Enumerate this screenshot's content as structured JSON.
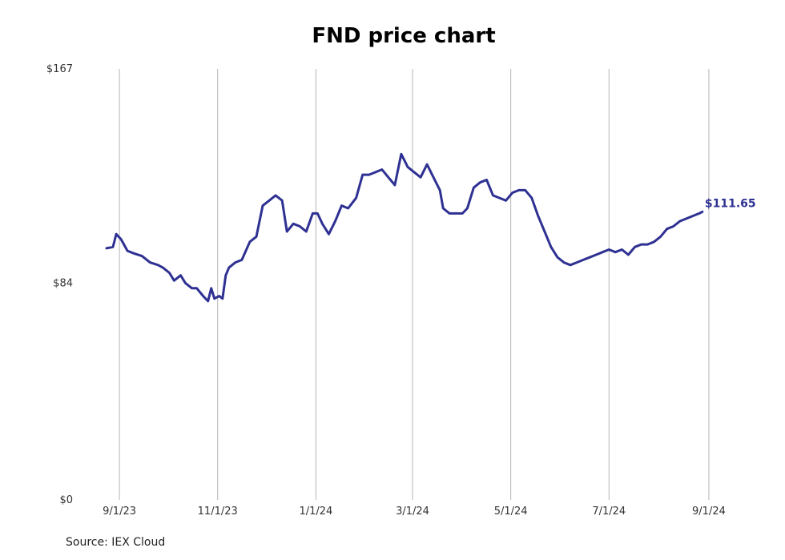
{
  "chart_data": {
    "type": "line",
    "title": "FND price chart",
    "source": "Source: IEX Cloud",
    "y_ticks": [
      "$167",
      "$84",
      "$0"
    ],
    "ylim": [
      0,
      167
    ],
    "y_tick_values": [
      167,
      84,
      0
    ],
    "x_ticks": [
      "9/1/23",
      "11/1/23",
      "1/1/24",
      "3/1/24",
      "5/1/24",
      "7/1/24",
      "9/1/24"
    ],
    "x_tick_dates": [
      "2023-09-01",
      "2023-11-01",
      "2024-01-01",
      "2024-03-01",
      "2024-05-01",
      "2024-07-01",
      "2024-09-01"
    ],
    "xlim": [
      "2023-08-24",
      "2024-09-06"
    ],
    "grid": {
      "vertical": true,
      "horizontal": false
    },
    "line_color": "#2e3192",
    "end_label": "$111.65",
    "series": [
      {
        "dates": [
          "2023-08-24",
          "2023-08-28",
          "2023-08-30",
          "2023-09-02",
          "2023-09-06",
          "2023-09-10",
          "2023-09-15",
          "2023-09-20",
          "2023-09-25",
          "2023-09-28",
          "2023-10-02",
          "2023-10-05",
          "2023-10-09",
          "2023-10-12",
          "2023-10-16",
          "2023-10-19",
          "2023-10-23",
          "2023-10-26",
          "2023-10-28",
          "2023-10-30",
          "2023-11-02",
          "2023-11-04",
          "2023-11-06",
          "2023-11-08",
          "2023-11-12",
          "2023-11-16",
          "2023-11-21",
          "2023-11-25",
          "2023-11-29",
          "2023-12-03",
          "2023-12-07",
          "2023-12-11",
          "2023-12-14",
          "2023-12-18",
          "2023-12-22",
          "2023-12-26",
          "2023-12-30",
          "2024-01-02",
          "2024-01-05",
          "2024-01-09",
          "2024-01-13",
          "2024-01-17",
          "2024-01-21",
          "2024-01-26",
          "2024-01-30",
          "2024-02-03",
          "2024-02-07",
          "2024-02-11",
          "2024-02-15",
          "2024-02-19",
          "2024-02-23",
          "2024-02-27",
          "2024-03-02",
          "2024-03-06",
          "2024-03-10",
          "2024-03-14",
          "2024-03-18",
          "2024-03-20",
          "2024-03-24",
          "2024-03-28",
          "2024-04-01",
          "2024-04-04",
          "2024-04-08",
          "2024-04-12",
          "2024-04-16",
          "2024-04-20",
          "2024-04-24",
          "2024-04-28",
          "2024-05-02",
          "2024-05-06",
          "2024-05-10",
          "2024-05-14",
          "2024-05-18",
          "2024-05-22",
          "2024-05-26",
          "2024-05-30",
          "2024-06-03",
          "2024-06-07",
          "2024-06-11",
          "2024-06-15",
          "2024-06-19",
          "2024-06-23",
          "2024-06-27",
          "2024-07-01",
          "2024-07-05",
          "2024-07-09",
          "2024-07-13",
          "2024-07-17",
          "2024-07-21",
          "2024-07-25",
          "2024-07-29",
          "2024-08-02",
          "2024-08-06",
          "2024-08-10",
          "2024-08-14",
          "2024-08-18",
          "2024-08-22",
          "2024-08-26",
          "2024-08-28"
        ],
        "values": [
          97.5,
          98.0,
          103.0,
          101.0,
          96.5,
          95.5,
          94.5,
          92.0,
          91.0,
          90.0,
          88.0,
          85.0,
          87.0,
          84.0,
          82.0,
          82.0,
          79.0,
          77.0,
          82.0,
          78.0,
          79.0,
          78.0,
          87.0,
          90.0,
          92.0,
          93.0,
          100.0,
          102.0,
          114.0,
          116.0,
          118.0,
          116.0,
          104.0,
          107.0,
          106.0,
          104.0,
          111.0,
          111.0,
          107.0,
          103.0,
          108.0,
          114.0,
          113.0,
          117.0,
          126.0,
          126.0,
          127.0,
          128.0,
          125.0,
          122.0,
          134.0,
          129.0,
          127.0,
          125.0,
          130.0,
          125.0,
          120.0,
          113.0,
          111.0,
          111.0,
          111.0,
          113.0,
          121.0,
          123.0,
          124.0,
          118.0,
          117.0,
          116.0,
          119.0,
          120.0,
          120.0,
          117.0,
          110.0,
          104.0,
          98.0,
          94.0,
          92.0,
          91.0,
          92.0,
          93.0,
          94.0,
          95.0,
          96.0,
          97.0,
          96.0,
          97.0,
          95.0,
          98.0,
          99.0,
          99.0,
          100.0,
          102.0,
          105.0,
          106.0,
          108.0,
          109.0,
          110.0,
          111.0,
          111.65
        ]
      }
    ]
  }
}
